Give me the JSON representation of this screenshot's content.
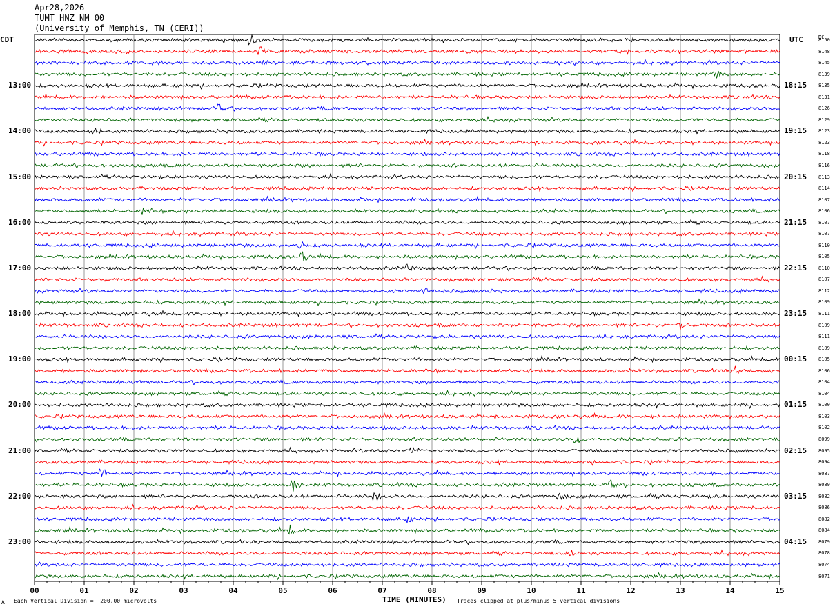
{
  "header": {
    "date": "Apr28,2026",
    "station": "TUMT HNZ NM 00",
    "network": "(University of Memphis, TN (CERI))"
  },
  "labels": {
    "left_tz": "CDT",
    "right_tz": "UTC",
    "dc_header": "DC",
    "mark": "A"
  },
  "footer": {
    "scale": "Each Vertical Division =  200.00 microvolts",
    "clip": "Traces clipped at plus/minus 5 vertical divisions"
  },
  "colors": {
    "trace_cycle": [
      "#000000",
      "#ff0000",
      "#0000ff",
      "#006400"
    ],
    "grid": "#808080",
    "background": "#ffffff"
  },
  "chart_data": {
    "type": "line",
    "title": "Apr28,2026 TUMT HNZ NM 00",
    "xlabel": "TIME (MINUTES)",
    "ylabel": "",
    "xlim": [
      0,
      15
    ],
    "x_ticks": [
      "00",
      "01",
      "02",
      "03",
      "04",
      "05",
      "06",
      "07",
      "08",
      "09",
      "10",
      "11",
      "12",
      "13",
      "14",
      "15"
    ],
    "row_count": 48,
    "minutes_per_row": 15,
    "cdt_hour_labels": [
      {
        "row": 4,
        "label": "13:00"
      },
      {
        "row": 8,
        "label": "14:00"
      },
      {
        "row": 12,
        "label": "15:00"
      },
      {
        "row": 16,
        "label": "16:00"
      },
      {
        "row": 20,
        "label": "17:00"
      },
      {
        "row": 24,
        "label": "18:00"
      },
      {
        "row": 28,
        "label": "19:00"
      },
      {
        "row": 32,
        "label": "20:00"
      },
      {
        "row": 36,
        "label": "21:00"
      },
      {
        "row": 40,
        "label": "22:00"
      },
      {
        "row": 44,
        "label": "23:00"
      }
    ],
    "utc_hour_labels": [
      {
        "row": 4,
        "label": "18:15"
      },
      {
        "row": 8,
        "label": "19:15"
      },
      {
        "row": 12,
        "label": "20:15"
      },
      {
        "row": 16,
        "label": "21:15"
      },
      {
        "row": 20,
        "label": "22:15"
      },
      {
        "row": 24,
        "label": "23:15"
      },
      {
        "row": 28,
        "label": "00:15"
      },
      {
        "row": 32,
        "label": "01:15"
      },
      {
        "row": 36,
        "label": "02:15"
      },
      {
        "row": 40,
        "label": "03:15"
      },
      {
        "row": 44,
        "label": "04:15"
      }
    ],
    "dc_offsets": [
      "8150",
      "8148",
      "8145",
      "8139",
      "8135",
      "8131",
      "8126",
      "8129",
      "8123",
      "8123",
      "8118",
      "8116",
      "8113",
      "8114",
      "8107",
      "8106",
      "8107",
      "8107",
      "8110",
      "8105",
      "8110",
      "8107",
      "8112",
      "8109",
      "8111",
      "8109",
      "8111",
      "8109",
      "8105",
      "8106",
      "8104",
      "8104",
      "8100",
      "8103",
      "8102",
      "8099",
      "8095",
      "8094",
      "8087",
      "8089",
      "8082",
      "8086",
      "8082",
      "8084",
      "8079",
      "8078",
      "8074",
      "8071"
    ],
    "events": [
      {
        "row": 0,
        "minute": 4.35,
        "amp": 2.4
      },
      {
        "row": 1,
        "minute": 4.55,
        "amp": 1.6
      },
      {
        "row": 3,
        "minute": 13.7,
        "amp": 1.6
      },
      {
        "row": 6,
        "minute": 3.7,
        "amp": 1.5
      },
      {
        "row": 8,
        "minute": 1.2,
        "amp": 1.4
      },
      {
        "row": 15,
        "minute": 2.2,
        "amp": 2.0
      },
      {
        "row": 18,
        "minute": 5.3,
        "amp": 2.4
      },
      {
        "row": 19,
        "minute": 5.4,
        "amp": 2.0
      },
      {
        "row": 20,
        "minute": 7.5,
        "amp": 1.5
      },
      {
        "row": 22,
        "minute": 7.85,
        "amp": 1.4
      },
      {
        "row": 25,
        "minute": 13.0,
        "amp": 2.4
      },
      {
        "row": 29,
        "minute": 14.1,
        "amp": 1.5
      },
      {
        "row": 35,
        "minute": 10.9,
        "amp": 2.0
      },
      {
        "row": 36,
        "minute": 7.6,
        "amp": 1.6
      },
      {
        "row": 38,
        "minute": 1.35,
        "amp": 2.0
      },
      {
        "row": 39,
        "minute": 5.2,
        "amp": 2.4
      },
      {
        "row": 39,
        "minute": 11.6,
        "amp": 1.6
      },
      {
        "row": 40,
        "minute": 6.85,
        "amp": 2.0
      },
      {
        "row": 40,
        "minute": 10.55,
        "amp": 1.6
      },
      {
        "row": 42,
        "minute": 7.5,
        "amp": 1.5
      },
      {
        "row": 43,
        "minute": 5.15,
        "amp": 1.6
      },
      {
        "row": 45,
        "minute": 10.8,
        "amp": 1.2
      }
    ]
  }
}
